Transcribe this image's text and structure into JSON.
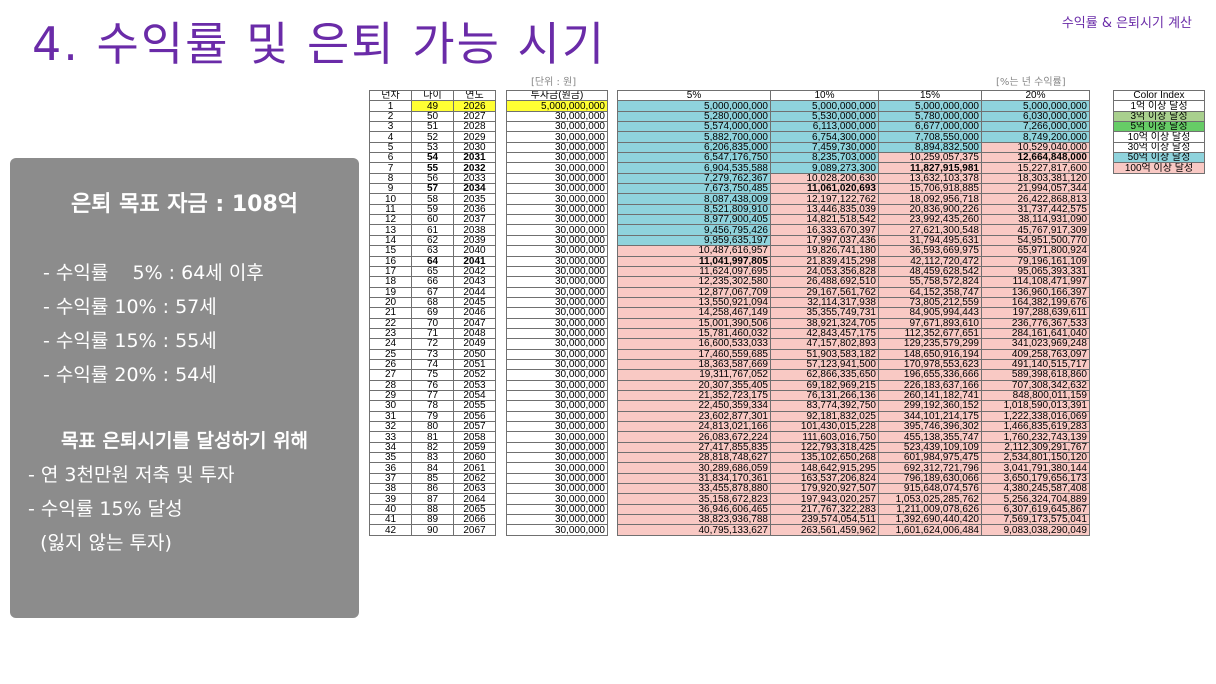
{
  "title": "4. 수익률 및 은퇴 가능 시기",
  "corner_label": "수익률 & 은퇴시기 계산",
  "summary": {
    "heading": "은퇴 목표 자금 : 108억",
    "rates": [
      "- 수익률    5% : 64세 이후",
      "- 수익률 10% : 57세",
      "- 수익률 15% : 55세",
      "- 수익률 20% : 54세"
    ],
    "subheading": "목표 은퇴시기를 달성하기 위해",
    "actions": [
      "- 연 3천만원 저축 및 투자",
      "- 수익률 15% 달성",
      "  (잃지 않는 투자)"
    ]
  },
  "table": {
    "unit_note": "[단위 : 원]",
    "rate_note": "[%는 년 수익률]",
    "headers": {
      "year_no": "년차",
      "age": "나이",
      "year": "연도",
      "invest": "투자금(원금)",
      "r5": "5%",
      "r10": "10%",
      "r15": "15%",
      "r20": "20%"
    },
    "rows": [
      [
        "1",
        "49",
        "2026",
        "5,000,000,000",
        "5,000,000,000",
        "5,000,000,000",
        "5,000,000,000",
        "5,000,000,000"
      ],
      [
        "2",
        "50",
        "2027",
        "30,000,000",
        "5,280,000,000",
        "5,530,000,000",
        "5,780,000,000",
        "6,030,000,000"
      ],
      [
        "3",
        "51",
        "2028",
        "30,000,000",
        "5,574,000,000",
        "6,113,000,000",
        "6,677,000,000",
        "7,266,000,000"
      ],
      [
        "4",
        "52",
        "2029",
        "30,000,000",
        "5,882,700,000",
        "6,754,300,000",
        "7,708,550,000",
        "8,749,200,000"
      ],
      [
        "5",
        "53",
        "2030",
        "30,000,000",
        "6,206,835,000",
        "7,459,730,000",
        "8,894,832,500",
        "10,529,040,000"
      ],
      [
        "6",
        "54",
        "2031",
        "30,000,000",
        "6,547,176,750",
        "8,235,703,000",
        "10,259,057,375",
        "12,664,848,000"
      ],
      [
        "7",
        "55",
        "2032",
        "30,000,000",
        "6,904,535,588",
        "9,089,273,300",
        "11,827,915,981",
        "15,227,817,600"
      ],
      [
        "8",
        "56",
        "2033",
        "30,000,000",
        "7,279,762,367",
        "10,028,200,630",
        "13,632,103,378",
        "18,303,381,120"
      ],
      [
        "9",
        "57",
        "2034",
        "30,000,000",
        "7,673,750,485",
        "11,061,020,693",
        "15,706,918,885",
        "21,994,057,344"
      ],
      [
        "10",
        "58",
        "2035",
        "30,000,000",
        "8,087,438,009",
        "12,197,122,762",
        "18,092,956,718",
        "26,422,868,813"
      ],
      [
        "11",
        "59",
        "2036",
        "30,000,000",
        "8,521,809,910",
        "13,446,835,039",
        "20,836,900,226",
        "31,737,442,575"
      ],
      [
        "12",
        "60",
        "2037",
        "30,000,000",
        "8,977,900,405",
        "14,821,518,542",
        "23,992,435,260",
        "38,114,931,090"
      ],
      [
        "13",
        "61",
        "2038",
        "30,000,000",
        "9,456,795,426",
        "16,333,670,397",
        "27,621,300,548",
        "45,767,917,309"
      ],
      [
        "14",
        "62",
        "2039",
        "30,000,000",
        "9,959,635,197",
        "17,997,037,436",
        "31,794,495,631",
        "54,951,500,770"
      ],
      [
        "15",
        "63",
        "2040",
        "30,000,000",
        "10,487,616,957",
        "19,826,741,180",
        "36,593,669,975",
        "65,971,800,924"
      ],
      [
        "16",
        "64",
        "2041",
        "30,000,000",
        "11,041,997,805",
        "21,839,415,298",
        "42,112,720,472",
        "79,196,161,109"
      ],
      [
        "17",
        "65",
        "2042",
        "30,000,000",
        "11,624,097,695",
        "24,053,356,828",
        "48,459,628,542",
        "95,065,393,331"
      ],
      [
        "18",
        "66",
        "2043",
        "30,000,000",
        "12,235,302,580",
        "26,488,692,510",
        "55,758,572,824",
        "114,108,471,997"
      ],
      [
        "19",
        "67",
        "2044",
        "30,000,000",
        "12,877,067,709",
        "29,167,561,762",
        "64,152,358,747",
        "136,960,166,397"
      ],
      [
        "20",
        "68",
        "2045",
        "30,000,000",
        "13,550,921,094",
        "32,114,317,938",
        "73,805,212,559",
        "164,382,199,676"
      ],
      [
        "21",
        "69",
        "2046",
        "30,000,000",
        "14,258,467,149",
        "35,355,749,731",
        "84,905,994,443",
        "197,288,639,611"
      ],
      [
        "22",
        "70",
        "2047",
        "30,000,000",
        "15,001,390,506",
        "38,921,324,705",
        "97,671,893,610",
        "236,776,367,533"
      ],
      [
        "23",
        "71",
        "2048",
        "30,000,000",
        "15,781,460,032",
        "42,843,457,175",
        "112,352,677,651",
        "284,161,641,040"
      ],
      [
        "24",
        "72",
        "2049",
        "30,000,000",
        "16,600,533,033",
        "47,157,802,893",
        "129,235,579,299",
        "341,023,969,248"
      ],
      [
        "25",
        "73",
        "2050",
        "30,000,000",
        "17,460,559,685",
        "51,903,583,182",
        "148,650,916,194",
        "409,258,763,097"
      ],
      [
        "26",
        "74",
        "2051",
        "30,000,000",
        "18,363,587,669",
        "57,123,941,500",
        "170,978,553,623",
        "491,140,515,717"
      ],
      [
        "27",
        "75",
        "2052",
        "30,000,000",
        "19,311,767,052",
        "62,866,335,650",
        "196,655,336,666",
        "589,398,618,860"
      ],
      [
        "28",
        "76",
        "2053",
        "30,000,000",
        "20,307,355,405",
        "69,182,969,215",
        "226,183,637,166",
        "707,308,342,632"
      ],
      [
        "29",
        "77",
        "2054",
        "30,000,000",
        "21,352,723,175",
        "76,131,266,136",
        "260,141,182,741",
        "848,800,011,159"
      ],
      [
        "30",
        "78",
        "2055",
        "30,000,000",
        "22,450,359,334",
        "83,774,392,750",
        "299,192,360,152",
        "1,018,590,013,391"
      ],
      [
        "31",
        "79",
        "2056",
        "30,000,000",
        "23,602,877,301",
        "92,181,832,025",
        "344,101,214,175",
        "1,222,338,016,069"
      ],
      [
        "32",
        "80",
        "2057",
        "30,000,000",
        "24,813,021,166",
        "101,430,015,228",
        "395,746,396,302",
        "1,466,835,619,283"
      ],
      [
        "33",
        "81",
        "2058",
        "30,000,000",
        "26,083,672,224",
        "111,603,016,750",
        "455,138,355,747",
        "1,760,232,743,139"
      ],
      [
        "34",
        "82",
        "2059",
        "30,000,000",
        "27,417,855,835",
        "122,793,318,425",
        "523,439,109,109",
        "2,112,309,291,767"
      ],
      [
        "35",
        "83",
        "2060",
        "30,000,000",
        "28,818,748,627",
        "135,102,650,268",
        "601,984,975,475",
        "2,534,801,150,120"
      ],
      [
        "36",
        "84",
        "2061",
        "30,000,000",
        "30,289,686,059",
        "148,642,915,295",
        "692,312,721,796",
        "3,041,791,380,144"
      ],
      [
        "37",
        "85",
        "2062",
        "30,000,000",
        "31,834,170,361",
        "163,537,206,824",
        "796,189,630,066",
        "3,650,179,656,173"
      ],
      [
        "38",
        "86",
        "2063",
        "30,000,000",
        "33,455,878,880",
        "179,920,927,507",
        "915,648,074,576",
        "4,380,245,587,408"
      ],
      [
        "39",
        "87",
        "2064",
        "30,000,000",
        "35,158,672,823",
        "197,943,020,257",
        "1,053,025,285,762",
        "5,256,324,704,889"
      ],
      [
        "40",
        "88",
        "2065",
        "30,000,000",
        "36,946,606,465",
        "217,767,322,283",
        "1,211,009,078,626",
        "6,307,619,645,867"
      ],
      [
        "41",
        "89",
        "2066",
        "30,000,000",
        "38,823,936,788",
        "239,574,054,511",
        "1,392,690,440,420",
        "7,569,173,575,041"
      ],
      [
        "42",
        "90",
        "2067",
        "30,000,000",
        "40,795,133,627",
        "263,561,459,962",
        "1,601,624,006,484",
        "9,083,038,290,049"
      ]
    ],
    "bold_rows": [
      5,
      6,
      8,
      15
    ],
    "bold_cells": {
      "5": [
        "r20"
      ],
      "6": [
        "r15"
      ],
      "8": [
        "r10"
      ],
      "15": [
        "r5"
      ]
    },
    "color_index": {
      "title": "Color Index",
      "items": [
        {
          "label": "1억 이상 달성",
          "color": "#ffffff"
        },
        {
          "label": "3억 이상 달성",
          "color": "#a9d08e"
        },
        {
          "label": "5억 이상 달성",
          "color": "#66cc66"
        },
        {
          "label": "10억 이상 달성",
          "color": "#ffffff"
        },
        {
          "label": "30억 이상 달성",
          "color": "#ffffff"
        },
        {
          "label": "50억 이상 달성",
          "color": "#8fd3dc"
        },
        {
          "label": "100억 이상 달성",
          "color": "#f9c9c4"
        }
      ]
    },
    "colors": {
      "yellow": "#ffff33",
      "teal": "#8fd3dc",
      "pink": "#f9c9c4",
      "white": "#ffffff",
      "header_bg": "#ffffff"
    }
  }
}
